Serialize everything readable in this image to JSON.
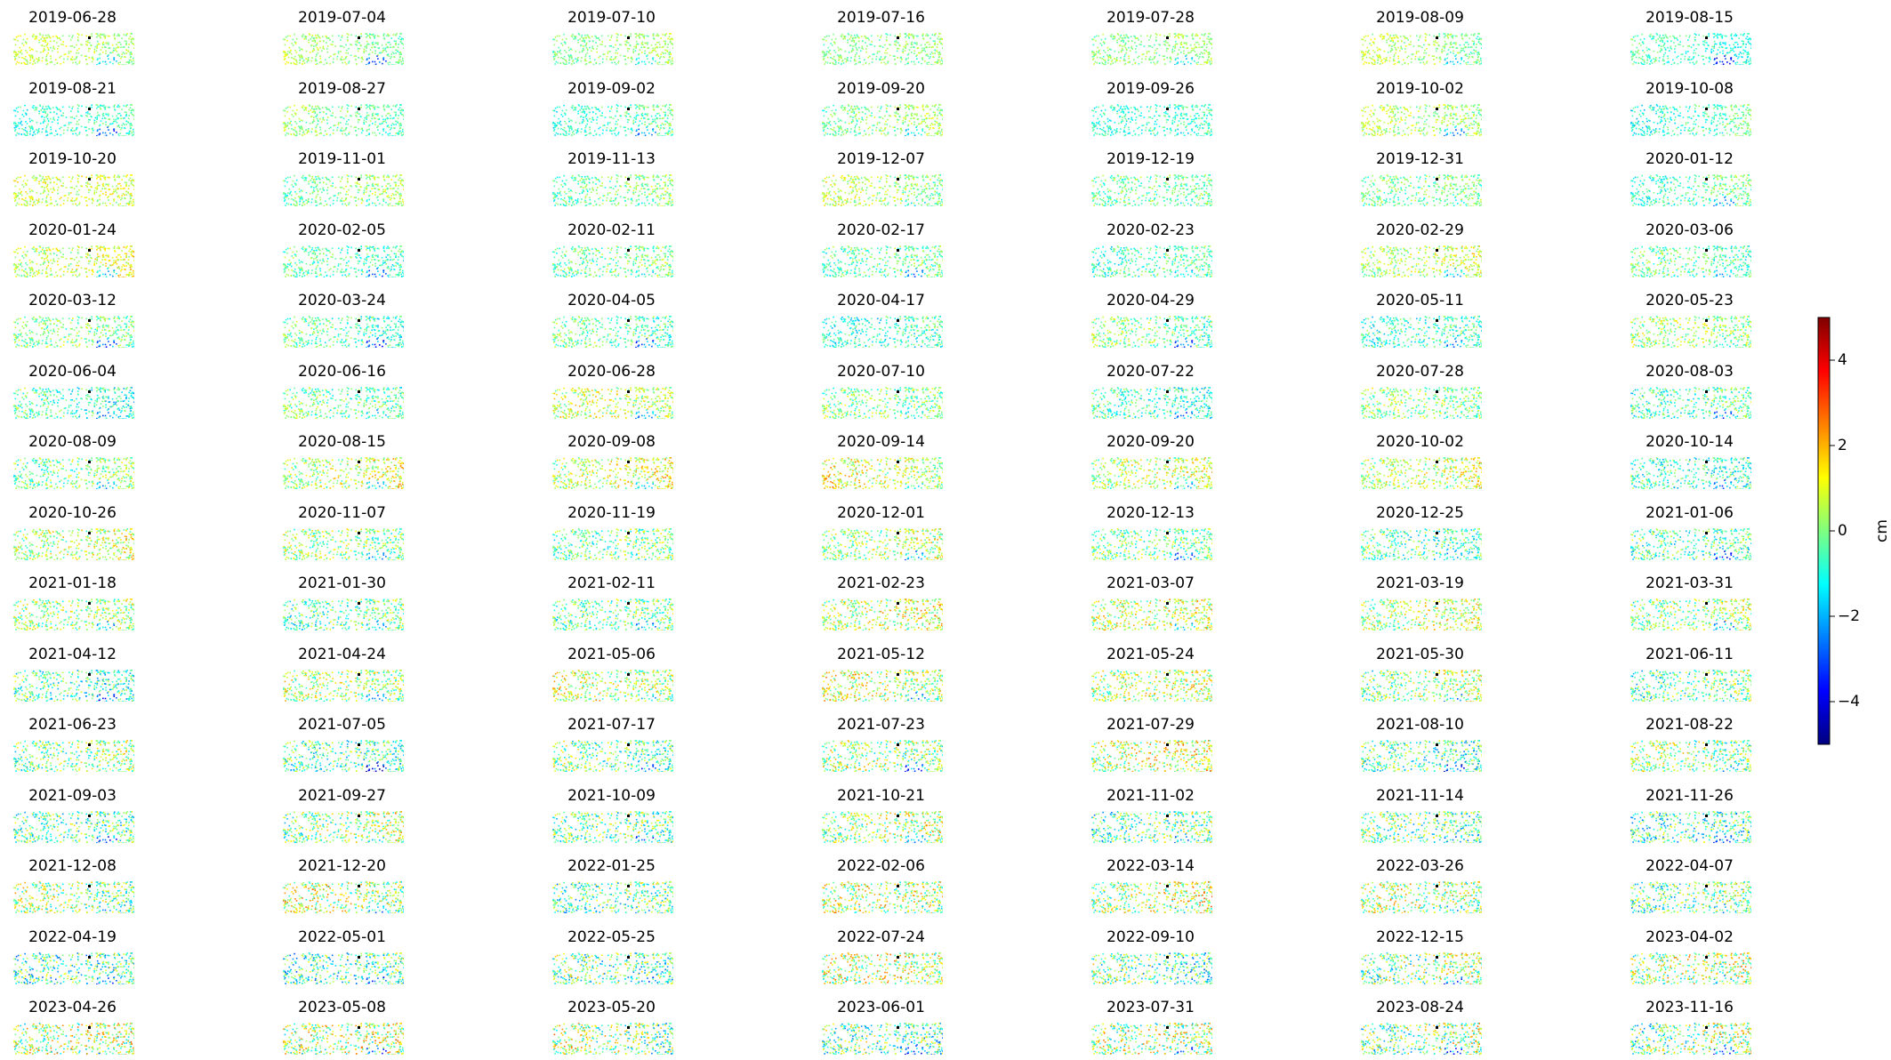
{
  "chart_data": {
    "type": "scatter",
    "layout": "small-multiples",
    "panel_titles": [
      "2019-06-28",
      "2019-07-04",
      "2019-07-10",
      "2019-07-16",
      "2019-07-28",
      "2019-08-09",
      "2019-08-15",
      "2019-08-21",
      "2019-08-27",
      "2019-09-02",
      "2019-09-20",
      "2019-09-26",
      "2019-10-02",
      "2019-10-08",
      "2019-10-20",
      "2019-11-01",
      "2019-11-13",
      "2019-12-07",
      "2019-12-19",
      "2019-12-31",
      "2020-01-12",
      "2020-01-24",
      "2020-02-05",
      "2020-02-11",
      "2020-02-17",
      "2020-02-23",
      "2020-02-29",
      "2020-03-06",
      "2020-03-12",
      "2020-03-24",
      "2020-04-05",
      "2020-04-17",
      "2020-04-29",
      "2020-05-11",
      "2020-05-23",
      "2020-06-04",
      "2020-06-16",
      "2020-06-28",
      "2020-07-10",
      "2020-07-22",
      "2020-07-28",
      "2020-08-03",
      "2020-08-09",
      "2020-08-15",
      "2020-09-08",
      "2020-09-14",
      "2020-09-20",
      "2020-10-02",
      "2020-10-14",
      "2020-10-26",
      "2020-11-07",
      "2020-11-19",
      "2020-12-01",
      "2020-12-13",
      "2020-12-25",
      "2021-01-06",
      "2021-01-18",
      "2021-01-30",
      "2021-02-11",
      "2021-02-23",
      "2021-03-07",
      "2021-03-19",
      "2021-03-31",
      "2021-04-12",
      "2021-04-24",
      "2021-05-06",
      "2021-05-12",
      "2021-05-24",
      "2021-05-30",
      "2021-06-11",
      "2021-06-23",
      "2021-07-05",
      "2021-07-17",
      "2021-07-23",
      "2021-07-29",
      "2021-08-10",
      "2021-08-22",
      "2021-09-03",
      "2021-09-27",
      "2021-10-09",
      "2021-10-21",
      "2021-11-02",
      "2021-11-14",
      "2021-11-26",
      "2021-12-08",
      "2021-12-20",
      "2022-01-25",
      "2022-02-06",
      "2022-03-14",
      "2022-03-26",
      "2022-04-07",
      "2022-04-19",
      "2022-05-01",
      "2022-05-25",
      "2022-07-24",
      "2022-09-10",
      "2022-12-15",
      "2023-04-02",
      "2023-04-26",
      "2023-05-08",
      "2023-05-20",
      "2023-06-01",
      "2023-07-31",
      "2023-08-24",
      "2023-11-16"
    ],
    "colormap": "jet",
    "colormap_stops": [
      "#00007f",
      "#0000ff",
      "#007fff",
      "#00ffff",
      "#7fff7f",
      "#ffff00",
      "#ff7f00",
      "#ff0000",
      "#7f0000"
    ],
    "colorbar": {
      "label": "cm",
      "range": [
        -5,
        5
      ],
      "ticks": [
        -4,
        -2,
        0,
        2,
        4
      ],
      "tick_labels": [
        "−4",
        "−2",
        "0",
        "2",
        "4"
      ],
      "orientation": "vertical",
      "placement": "right"
    },
    "reference_point_color": "#000000",
    "axes_visible": false
  }
}
